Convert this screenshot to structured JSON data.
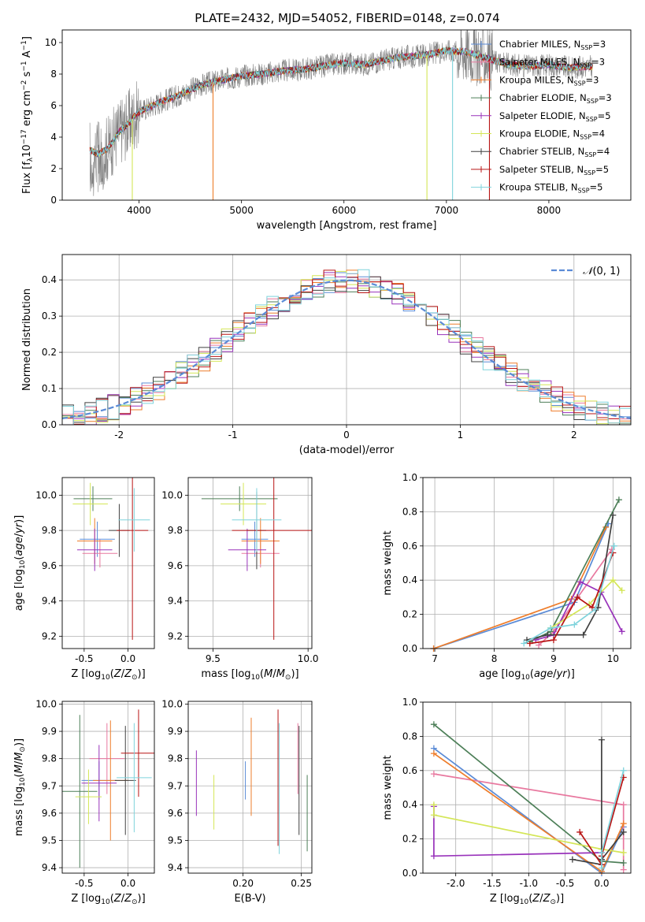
{
  "figure": {
    "title": "PLATE=2432, MJD=54052, FIBERID=0148, z=0.074"
  },
  "series_styles": [
    {
      "name": "Chabrier MILES, N_SSP=3",
      "color": "#5b8bd6"
    },
    {
      "name": "Salpeter MILES, N_SSP=3",
      "color": "#e8789f"
    },
    {
      "name": "Kroupa MILES, N_SSP=3",
      "color": "#ee7d2b"
    },
    {
      "name": "Chabrier ELODIE, N_SSP=3",
      "color": "#4d7f58"
    },
    {
      "name": "Salpeter ELODIE, N_SSP=5",
      "color": "#9933bb"
    },
    {
      "name": "Kroupa ELODIE, N_SSP=4",
      "color": "#d4e657"
    },
    {
      "name": "Chabrier STELIB, N_SSP=4",
      "color": "#404040"
    },
    {
      "name": "Salpeter STELIB, N_SSP=5",
      "color": "#b81414"
    },
    {
      "name": "Kroupa STELIB, N_SSP=5",
      "color": "#7fd3dc"
    }
  ],
  "chart_data": [
    {
      "id": "spectrum",
      "type": "line",
      "title": "PLATE=2432, MJD=54052, FIBERID=0148, z=0.074",
      "xlabel": "wavelength [Angstrom, rest frame]",
      "ylabel": "Flux [f_λ 10^-17 erg cm^-2 s^-1 A^-1]",
      "xlim": [
        3250,
        8800
      ],
      "ylim": [
        0,
        10.8
      ],
      "xticks": [
        4000,
        5000,
        6000,
        7000,
        8000
      ],
      "yticks": [
        0,
        2,
        4,
        6,
        8,
        10
      ],
      "grid": false,
      "legend": "upper-right",
      "observed_color": "#808080",
      "continuum": {
        "x": [
          3520,
          3600,
          3700,
          3800,
          3900,
          4000,
          4100,
          4200,
          4400,
          4600,
          4800,
          5000,
          5200,
          5400,
          5600,
          5800,
          6000,
          6200,
          6400,
          6600,
          6800,
          7000,
          7200,
          7400,
          7600,
          7800,
          8000,
          8200,
          8430
        ],
        "y": [
          3.2,
          2.9,
          3.3,
          4.3,
          4.9,
          5.6,
          5.9,
          6.2,
          6.7,
          7.3,
          7.6,
          7.9,
          8.0,
          8.2,
          8.3,
          8.5,
          8.7,
          8.6,
          8.9,
          9.1,
          9.2,
          9.5,
          9.4,
          9.0,
          8.6,
          8.5,
          8.6,
          8.4,
          8.5
        ]
      },
      "absorption_lines": [
        3934,
        4722,
        6810,
        7060,
        7420
      ],
      "legend_entries": [
        "Chabrier MILES, N_SSP=3",
        "Salpeter MILES, N_SSP=3",
        "Kroupa MILES, N_SSP=3",
        "Chabrier ELODIE, N_SSP=3",
        "Salpeter ELODIE, N_SSP=5",
        "Kroupa ELODIE, N_SSP=4",
        "Chabrier STELIB, N_SSP=4",
        "Salpeter STELIB, N_SSP=5",
        "Kroupa STELIB, N_SSP=5"
      ]
    },
    {
      "id": "residuals",
      "type": "histogram",
      "xlabel": "(data-model)/error",
      "ylabel": "Normed distribution",
      "xlim": [
        -2.5,
        2.5
      ],
      "ylim": [
        0,
        0.47
      ],
      "xticks": [
        -2,
        -1,
        0,
        1,
        2
      ],
      "yticks": [
        0.0,
        0.1,
        0.2,
        0.3,
        0.4
      ],
      "grid": true,
      "legend": "upper-right",
      "legend_entry": "N(0,1)",
      "reference_curve": {
        "name": "N(0,1)",
        "mean": 0,
        "sigma": 1,
        "color": "#5b8bd6"
      },
      "bin_width": 0.1
    },
    {
      "id": "age-vs-Z",
      "type": "errorbar",
      "xlabel": "Z [log10(Z/Z⊙)]",
      "ylabel": "age [log10(age/yr)]",
      "xlim": [
        -0.75,
        0.3
      ],
      "ylim": [
        9.13,
        10.1
      ],
      "xticks": [
        -0.5,
        0.0
      ],
      "yticks": [
        9.2,
        9.4,
        9.6,
        9.8,
        10.0
      ],
      "grid": true,
      "points": [
        {
          "series": 0,
          "x": -0.35,
          "y": 9.75,
          "xerr": 0.2,
          "yerr": 0.1
        },
        {
          "series": 1,
          "x": -0.32,
          "y": 9.67,
          "xerr": 0.2,
          "yerr": 0.08
        },
        {
          "series": 2,
          "x": -0.38,
          "y": 9.74,
          "xerr": 0.2,
          "yerr": 0.13
        },
        {
          "series": 3,
          "x": -0.4,
          "y": 9.98,
          "xerr": 0.22,
          "yerr": 0.07
        },
        {
          "series": 4,
          "x": -0.38,
          "y": 9.69,
          "xerr": 0.2,
          "yerr": 0.12
        },
        {
          "series": 5,
          "x": -0.43,
          "y": 9.95,
          "xerr": 0.2,
          "yerr": 0.12
        },
        {
          "series": 6,
          "x": -0.1,
          "y": 9.8,
          "xerr": 0.12,
          "yerr": 0.15
        },
        {
          "series": 7,
          "x": 0.05,
          "y": 9.8,
          "xerr": 0.18,
          "yerr": 0.62
        },
        {
          "series": 8,
          "x": 0.07,
          "y": 9.86,
          "xerr": 0.18,
          "yerr": 0.18
        }
      ]
    },
    {
      "id": "age-vs-mass",
      "type": "errorbar",
      "xlabel": "mass [log10(M/M⊙)]",
      "ylabel": "",
      "xlim": [
        9.37,
        10.02
      ],
      "ylim": [
        9.13,
        10.1
      ],
      "xticks": [
        9.5,
        10.0
      ],
      "yticks": [
        9.2,
        9.4,
        9.6,
        9.8,
        10.0
      ],
      "grid": true,
      "points": [
        {
          "series": 0,
          "x": 9.72,
          "y": 9.75,
          "xerr": 0.07,
          "yerr": 0.1
        },
        {
          "series": 1,
          "x": 9.75,
          "y": 9.67,
          "xerr": 0.1,
          "yerr": 0.08
        },
        {
          "series": 2,
          "x": 9.75,
          "y": 9.74,
          "xerr": 0.1,
          "yerr": 0.13
        },
        {
          "series": 3,
          "x": 9.64,
          "y": 9.98,
          "xerr": 0.2,
          "yerr": 0.07
        },
        {
          "series": 4,
          "x": 9.68,
          "y": 9.69,
          "xerr": 0.1,
          "yerr": 0.12
        },
        {
          "series": 5,
          "x": 9.66,
          "y": 9.95,
          "xerr": 0.12,
          "yerr": 0.12
        },
        {
          "series": 6,
          "x": 9.73,
          "y": 9.8,
          "xerr": 0.05,
          "yerr": 0.22
        },
        {
          "series": 7,
          "x": 9.82,
          "y": 9.8,
          "xerr": 0.22,
          "yerr": 0.62
        },
        {
          "series": 8,
          "x": 9.73,
          "y": 9.86,
          "xerr": 0.13,
          "yerr": 0.18
        }
      ]
    },
    {
      "id": "massweight-vs-age",
      "type": "line",
      "xlabel": "age [log10(age/yr)]",
      "ylabel": "mass weight",
      "xlim": [
        6.8,
        10.3
      ],
      "ylim": [
        0,
        1.0
      ],
      "xticks": [
        7,
        8,
        9,
        10
      ],
      "yticks": [
        0.0,
        0.2,
        0.4,
        0.6,
        0.8,
        1.0
      ],
      "grid": true,
      "series": [
        {
          "series": 0,
          "x": [
            6.98,
            9.35,
            9.92
          ],
          "y": [
            0.0,
            0.27,
            0.73
          ]
        },
        {
          "series": 1,
          "x": [
            8.75,
            9.0,
            9.98
          ],
          "y": [
            0.02,
            0.1,
            0.58
          ]
        },
        {
          "series": 2,
          "x": [
            6.98,
            9.3,
            9.88
          ],
          "y": [
            0.0,
            0.29,
            0.71
          ]
        },
        {
          "series": 3,
          "x": [
            8.6,
            8.95,
            10.1
          ],
          "y": [
            0.04,
            0.1,
            0.87
          ]
        },
        {
          "series": 4,
          "x": [
            8.7,
            9.0,
            9.45,
            9.8,
            10.15
          ],
          "y": [
            0.05,
            0.08,
            0.39,
            0.33,
            0.1
          ]
        },
        {
          "series": 5,
          "x": [
            8.95,
            9.6,
            10.0,
            10.15
          ],
          "y": [
            0.12,
            0.26,
            0.4,
            0.34
          ]
        },
        {
          "series": 6,
          "x": [
            8.55,
            8.9,
            9.5,
            9.75,
            10.0
          ],
          "y": [
            0.05,
            0.08,
            0.08,
            0.24,
            0.78
          ]
        },
        {
          "series": 7,
          "x": [
            8.6,
            9.0,
            9.4,
            9.65,
            10.0
          ],
          "y": [
            0.03,
            0.05,
            0.3,
            0.24,
            0.56
          ]
        },
        {
          "series": 8,
          "x": [
            8.5,
            8.95,
            9.35,
            9.7,
            10.02
          ],
          "y": [
            0.03,
            0.12,
            0.14,
            0.23,
            0.6
          ]
        }
      ]
    },
    {
      "id": "mass-vs-Z",
      "type": "errorbar",
      "xlabel": "Z [log10(Z/Z⊙)]",
      "ylabel": "mass [log10(M/M⊙)]",
      "xlim": [
        -0.75,
        0.3
      ],
      "ylim": [
        9.38,
        10.01
      ],
      "xticks": [
        -0.5,
        0.0
      ],
      "yticks": [
        9.4,
        9.5,
        9.6,
        9.7,
        9.8,
        9.9,
        10.0
      ],
      "grid": true,
      "points": [
        {
          "series": 0,
          "x": -0.33,
          "y": 9.72,
          "xerr": 0.2,
          "yerr": 0.07
        },
        {
          "series": 1,
          "x": -0.24,
          "y": 9.8,
          "xerr": 0.2,
          "yerr": 0.13
        },
        {
          "series": 2,
          "x": -0.2,
          "y": 9.72,
          "xerr": 0.2,
          "yerr": 0.22
        },
        {
          "series": 3,
          "x": -0.55,
          "y": 9.68,
          "xerr": 0.2,
          "yerr": 0.28
        },
        {
          "series": 4,
          "x": -0.33,
          "y": 9.71,
          "xerr": 0.2,
          "yerr": 0.14
        },
        {
          "series": 5,
          "x": -0.45,
          "y": 9.66,
          "xerr": 0.15,
          "yerr": 0.1
        },
        {
          "series": 6,
          "x": -0.03,
          "y": 9.72,
          "xerr": 0.12,
          "yerr": 0.2
        },
        {
          "series": 7,
          "x": 0.12,
          "y": 9.82,
          "xerr": 0.2,
          "yerr": 0.16
        },
        {
          "series": 8,
          "x": 0.07,
          "y": 9.73,
          "xerr": 0.2,
          "yerr": 0.2
        }
      ]
    },
    {
      "id": "mass-vs-EBV",
      "type": "errorbar",
      "xlabel": "E(B-V)",
      "ylabel": "",
      "xlim": [
        0.153,
        0.259
      ],
      "ylim": [
        9.38,
        10.01
      ],
      "xticks": [
        0.2,
        0.25
      ],
      "yticks": [
        9.4,
        9.5,
        9.6,
        9.7,
        9.8,
        9.9,
        10.0
      ],
      "grid": true,
      "points": [
        {
          "series": 0,
          "x": 0.202,
          "y": 9.72,
          "xerr": 0,
          "yerr": 0.07
        },
        {
          "series": 1,
          "x": 0.247,
          "y": 9.8,
          "xerr": 0,
          "yerr": 0.13
        },
        {
          "series": 2,
          "x": 0.207,
          "y": 9.77,
          "xerr": 0,
          "yerr": 0.18
        },
        {
          "series": 3,
          "x": 0.255,
          "y": 9.6,
          "xerr": 0,
          "yerr": 0.14
        },
        {
          "series": 4,
          "x": 0.16,
          "y": 9.71,
          "xerr": 0,
          "yerr": 0.12
        },
        {
          "series": 5,
          "x": 0.175,
          "y": 9.64,
          "xerr": 0,
          "yerr": 0.1
        },
        {
          "series": 6,
          "x": 0.248,
          "y": 9.72,
          "xerr": 0,
          "yerr": 0.2
        },
        {
          "series": 7,
          "x": 0.23,
          "y": 9.73,
          "xerr": 0,
          "yerr": 0.25
        },
        {
          "series": 8,
          "x": 0.231,
          "y": 9.69,
          "xerr": 0,
          "yerr": 0.24
        }
      ]
    },
    {
      "id": "massweight-vs-Z",
      "type": "line",
      "xlabel": "Z [log10(Z/Z⊙)]",
      "ylabel": "mass weight",
      "xlim": [
        -2.45,
        0.4
      ],
      "ylim": [
        0,
        1.0
      ],
      "xticks": [
        -2.0,
        -1.5,
        -1.0,
        -0.5,
        0.0
      ],
      "yticks": [
        0.0,
        0.2,
        0.4,
        0.6,
        0.8,
        1.0
      ],
      "grid": true,
      "series": [
        {
          "series": 0,
          "x": [
            -2.3,
            0.0,
            0.3
          ],
          "y": [
            0.73,
            0.0,
            0.27
          ]
        },
        {
          "series": 1,
          "x": [
            -2.3,
            0.3,
            0.3
          ],
          "y": [
            0.58,
            0.4,
            0.02
          ]
        },
        {
          "series": 2,
          "x": [
            -2.3,
            0.0,
            0.3
          ],
          "y": [
            0.7,
            0.01,
            0.29
          ]
        },
        {
          "series": 3,
          "x": [
            -2.3,
            0.0,
            0.3
          ],
          "y": [
            0.87,
            0.07,
            0.06
          ]
        },
        {
          "series": 4,
          "x": [
            -2.3,
            -2.3,
            0.0,
            0.0,
            0.0
          ],
          "y": [
            0.39,
            0.1,
            0.12,
            0.08,
            0.05
          ]
        },
        {
          "series": 5,
          "x": [
            -2.3,
            -2.3,
            0.0,
            0.3
          ],
          "y": [
            0.4,
            0.34,
            0.14,
            0.12
          ]
        },
        {
          "series": 6,
          "x": [
            -0.4,
            0.0,
            0.0,
            0.0,
            0.3
          ],
          "y": [
            0.08,
            0.05,
            0.78,
            0.08,
            0.24
          ]
        },
        {
          "series": 7,
          "x": [
            -0.3,
            0.0,
            0.0,
            0.3
          ],
          "y": [
            0.24,
            0.05,
            0.1,
            0.56
          ]
        },
        {
          "series": 8,
          "x": [
            0.0,
            0.0,
            0.3
          ],
          "y": [
            0.03,
            0.12,
            0.6
          ]
        }
      ]
    }
  ]
}
